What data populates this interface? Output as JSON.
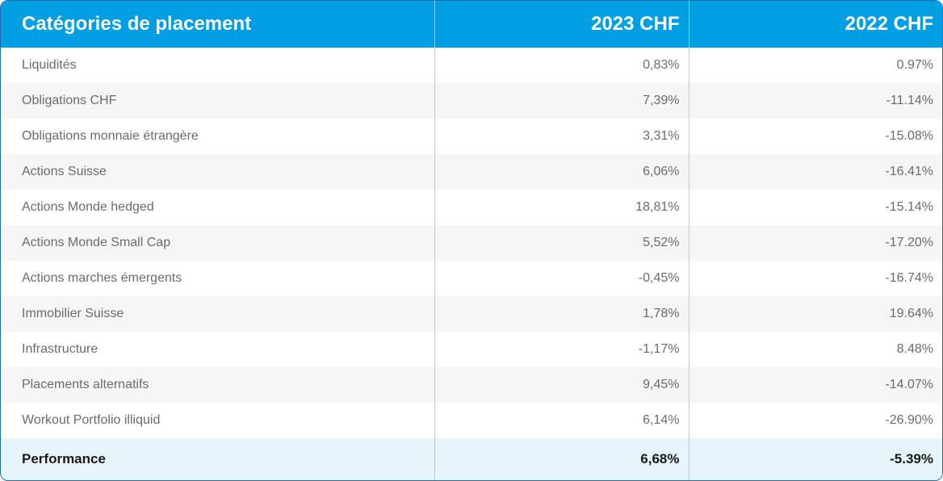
{
  "header": {
    "category": "Catégories de placement",
    "col2023": "2023 CHF",
    "col2022": "2022 CHF"
  },
  "rows": [
    {
      "category": "Liquidités",
      "v2023": "0,83%",
      "v2022": "0.97%"
    },
    {
      "category": "Obligations CHF",
      "v2023": "7,39%",
      "v2022": "-11.14%"
    },
    {
      "category": "Obligations monnaie étrangère",
      "v2023": "3,31%",
      "v2022": "-15.08%"
    },
    {
      "category": "Actions Suisse",
      "v2023": "6,06%",
      "v2022": "-16.41%"
    },
    {
      "category": "Actions Monde hedged",
      "v2023": "18,81%",
      "v2022": "-15.14%"
    },
    {
      "category": "Actions Monde Small Cap",
      "v2023": "5,52%",
      "v2022": "-17.20%"
    },
    {
      "category": "Actions marches émergents",
      "v2023": "-0,45%",
      "v2022": "-16.74%"
    },
    {
      "category": "Immobilier Suisse",
      "v2023": "1,78%",
      "v2022": "19.64%"
    },
    {
      "category": "Infrastructure",
      "v2023": "-1,17%",
      "v2022": "8.48%"
    },
    {
      "category": "Placements alternatifs",
      "v2023": "9,45%",
      "v2022": "-14.07%"
    },
    {
      "category": "Workout Portfolio illiquid",
      "v2023": "6,14%",
      "v2022": "-26.90%"
    }
  ],
  "total": {
    "category": "Performance",
    "v2023": "6,68%",
    "v2022": "-5.39%"
  },
  "colors": {
    "header_bg": "#009fe3",
    "header_text": "#ffffff",
    "alt_row_bg": "#f5f5f5",
    "total_row_bg": "#e6f4fc",
    "border": "#1f6fb0"
  }
}
